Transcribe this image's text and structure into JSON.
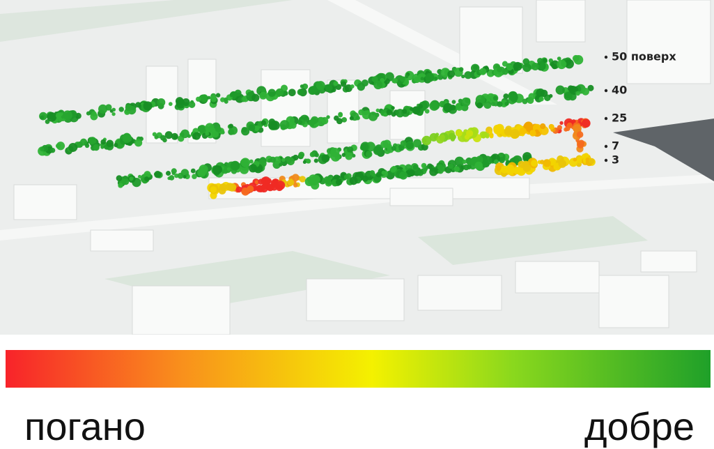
{
  "map": {
    "floor_labels": [
      "50 поверх",
      "40",
      "25",
      "7",
      "3"
    ]
  },
  "legend": {
    "low": "погано",
    "high": "добре"
  }
}
